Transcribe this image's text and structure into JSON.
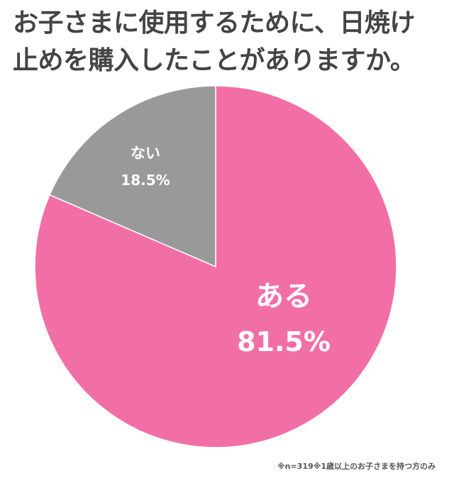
{
  "title": {
    "line1": "お子さまに使用するために、日焼け",
    "line2": "止めを購入したことがありますか。"
  },
  "chart_data": {
    "type": "pie",
    "title": "お子さまに使用するために、日焼け止めを購入したことがありますか。",
    "categories": [
      "ある",
      "ない"
    ],
    "values": [
      81.5,
      18.5
    ],
    "value_labels": [
      "81.5%",
      "18.5%"
    ],
    "colors": [
      "#F26FA6",
      "#999999"
    ],
    "start_angle": "12 o'clock",
    "direction": "ある clockwise from top; ない counter-clockwise from top",
    "legend": "none (labels inside slices)",
    "note": "※n=319※1歳以上のお子さまを持つ方のみ"
  },
  "labels": {
    "yes_name": "ある",
    "yes_value": "81.5%",
    "no_name": "ない",
    "no_value": "18.5%"
  },
  "footnote": "※n=319※1歳以上のお子さまを持つ方のみ"
}
